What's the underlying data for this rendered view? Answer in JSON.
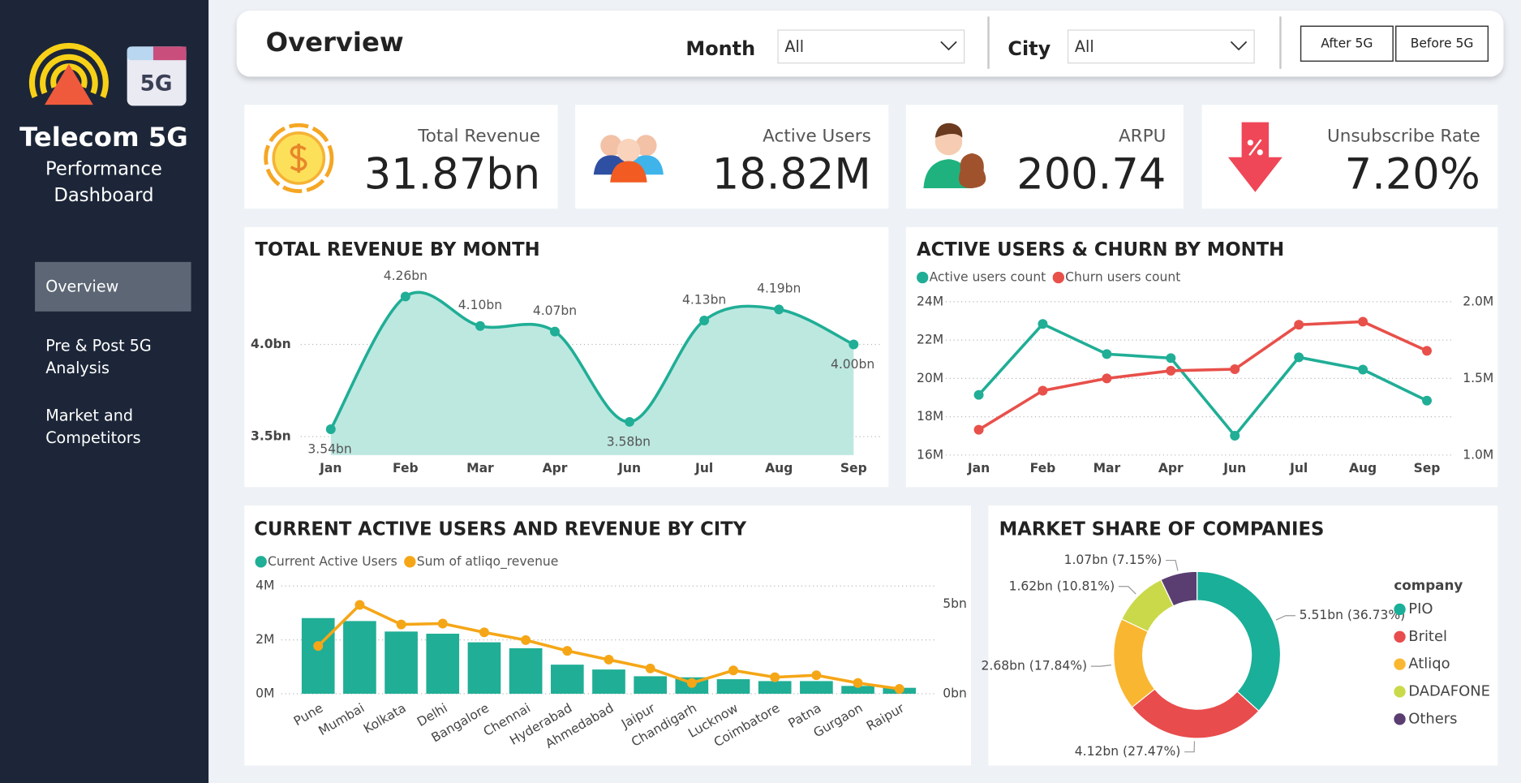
{
  "sidebar": {
    "logo_badge": "5G",
    "title": "Telecom 5G",
    "subtitle_lines": [
      "Performance",
      "Dashboard"
    ],
    "nav": [
      {
        "lines": [
          "Overview"
        ],
        "active": true
      },
      {
        "lines": [
          "Pre & Post 5G",
          "Analysis"
        ]
      },
      {
        "lines": [
          "Market and",
          "Competitors"
        ]
      }
    ]
  },
  "header": {
    "title": "Overview",
    "filters": [
      {
        "label": "Month",
        "value": "All"
      },
      {
        "label": "City",
        "value": "All"
      }
    ],
    "buttons": [
      "After 5G",
      "Before 5G"
    ]
  },
  "kpis": [
    {
      "label": "Total Revenue",
      "value": "31.87bn"
    },
    {
      "label": "Active Users",
      "value": "18.82M"
    },
    {
      "label": "ARPU",
      "value": "200.74"
    },
    {
      "label": "Unsubscribe Rate",
      "value": "7.20%"
    }
  ],
  "chart_data": [
    {
      "type": "area",
      "title": "TOTAL REVENUE BY MONTH",
      "categories": [
        "Jan",
        "Feb",
        "Mar",
        "Apr",
        "Jun",
        "Jul",
        "Aug",
        "Sep"
      ],
      "values": [
        3.54,
        4.26,
        4.1,
        4.07,
        3.58,
        4.13,
        4.19,
        4.0
      ],
      "value_labels": [
        "3.54bn",
        "4.26bn",
        "4.10bn",
        "4.07bn",
        "3.58bn",
        "4.13bn",
        "4.19bn",
        "4.00bn"
      ],
      "color": "#20ae96",
      "fill": "#bde8e0",
      "ylim": [
        3.4,
        4.35
      ],
      "yticks": [
        {
          "value": 3.5,
          "label": "3.5bn"
        },
        {
          "value": 4,
          "label": "4.0bn"
        }
      ],
      "grid": true
    },
    {
      "type": "line",
      "title": "ACTIVE USERS & CHURN BY MONTH",
      "categories": [
        "Jan",
        "Feb",
        "Mar",
        "Apr",
        "Jun",
        "Jul",
        "Aug",
        "Sep"
      ],
      "series": [
        {
          "name": "Active users count",
          "color": "#20ae96",
          "values": [
            19.14,
            22.84,
            21.27,
            21.06,
            17.01,
            21.1,
            20.46,
            18.84
          ]
        },
        {
          "name": "Churn users count",
          "color": "#e8504a",
          "axis": "y2",
          "values": [
            1.165,
            1.42,
            1.5,
            1.55,
            1.56,
            1.85,
            1.87,
            1.68
          ]
        }
      ],
      "ylim": [
        16,
        24
      ],
      "yticks": [
        {
          "value": 16,
          "label": "16M"
        },
        {
          "value": 18,
          "label": "18M"
        },
        {
          "value": 20,
          "label": "20M"
        },
        {
          "value": 22,
          "label": "22M"
        },
        {
          "value": 24,
          "label": "24M"
        }
      ],
      "y2lim": [
        1,
        2
      ],
      "y2ticks": [
        {
          "value": 1,
          "label": "1.0M"
        },
        {
          "value": 1.5,
          "label": "1.5M"
        },
        {
          "value": 2,
          "label": "2.0M"
        }
      ],
      "grid": true
    },
    {
      "type": "bar",
      "title": "CURRENT ACTIVE USERS AND REVENUE BY CITY",
      "categories": [
        "Pune",
        "Mumbai",
        "Kolkata",
        "Delhi",
        "Bangalore",
        "Chennai",
        "Hyderabad",
        "Ahmedabad",
        "Jaipur",
        "Chandigarh",
        "Lucknow",
        "Coimbatore",
        "Patna",
        "Gurgaon",
        "Raipur"
      ],
      "series": [
        {
          "name": "Current Active Users",
          "color": "#20ae96",
          "values": [
            2.81,
            2.7,
            2.31,
            2.23,
            1.91,
            1.69,
            1.08,
            0.9,
            0.65,
            0.61,
            0.54,
            0.47,
            0.47,
            0.29,
            0.22
          ]
        },
        {
          "name": "Sum of atliqo_revenue",
          "color": "#f5a617",
          "axis": "y2",
          "type": "line",
          "values": [
            2.66,
            4.95,
            3.86,
            3.91,
            3.42,
            2.99,
            2.39,
            1.9,
            1.41,
            0.6,
            1.3,
            0.92,
            1.03,
            0.6,
            0.27
          ]
        }
      ],
      "ylim": [
        0,
        4
      ],
      "yticks": [
        {
          "value": 0,
          "label": "0M"
        },
        {
          "value": 2,
          "label": "2M"
        },
        {
          "value": 4,
          "label": "4M"
        }
      ],
      "y2lim": [
        0,
        6
      ],
      "y2ticks": [
        {
          "value": 0,
          "label": "0bn"
        },
        {
          "value": 5,
          "label": "5bn"
        }
      ],
      "grid": true
    },
    {
      "type": "donut",
      "title": "MARKET SHARE OF COMPANIES",
      "legend_title": "company",
      "categories": [
        "PIO",
        "Britel",
        "Atliqo",
        "DADAFONE",
        "Others"
      ],
      "values": [
        5.51,
        4.12,
        2.68,
        1.62,
        1.07
      ],
      "value_labels": [
        "5.51bn (36.73%)",
        "4.12bn (27.47%)",
        "2.68bn (17.84%)",
        "1.62bn (10.81%)",
        "1.07bn (7.15%)"
      ],
      "colors": [
        "#1aaf98",
        "#e84c4c",
        "#f9b731",
        "#cad94a",
        "#5a3e72"
      ]
    }
  ]
}
